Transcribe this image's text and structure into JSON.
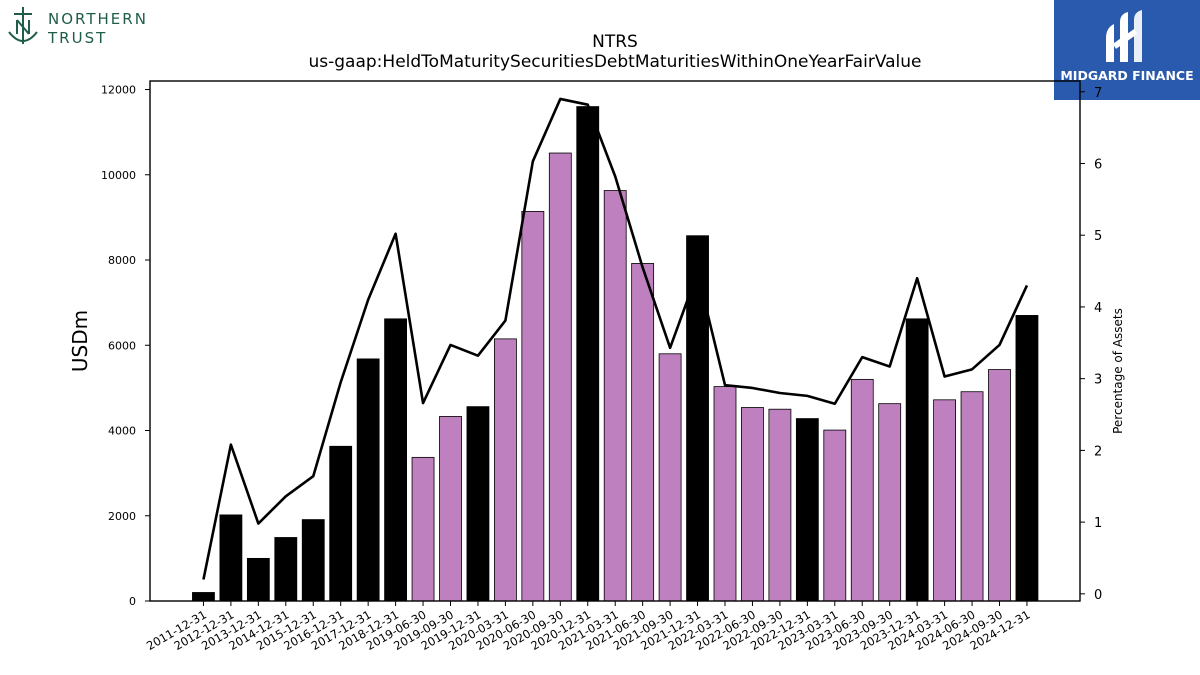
{
  "branding": {
    "left_logo_line1": "NORTHERN",
    "left_logo_line2": "TRUST",
    "right_logo_text": "MIDGARD FINANCE"
  },
  "chart_data": {
    "type": "bar",
    "title": "NTRS",
    "subtitle": "us-gaap:HeldToMaturitySecuritiesDebtMaturitiesWithinOneYearFairValue",
    "ylabel": "USDm",
    "y2label": "Percentage of Assets",
    "ylim": [
      0,
      12200
    ],
    "y2lim": [
      -0.1,
      7.15
    ],
    "yticks": [
      0,
      2000,
      4000,
      6000,
      8000,
      10000,
      12000
    ],
    "y2ticks": [
      0,
      1,
      2,
      3,
      4,
      5,
      6,
      7
    ],
    "categories": [
      "2011-12-31",
      "2012-12-31",
      "2013-12-31",
      "2014-12-31",
      "2015-12-31",
      "2016-12-31",
      "2017-12-31",
      "2018-12-31",
      "2019-06-30",
      "2019-09-30",
      "2019-12-31",
      "2020-03-31",
      "2020-06-30",
      "2020-09-30",
      "2020-12-31",
      "2021-03-31",
      "2021-06-30",
      "2021-09-30",
      "2021-12-31",
      "2022-03-31",
      "2022-06-30",
      "2022-09-30",
      "2022-12-31",
      "2023-03-31",
      "2023-06-30",
      "2023-09-30",
      "2023-12-31",
      "2024-03-31",
      "2024-06-30",
      "2024-09-30",
      "2024-12-31"
    ],
    "series": [
      {
        "type": "bar",
        "values": [
          200,
          2020,
          1000,
          1490,
          1910,
          3630,
          5680,
          6620,
          3370,
          4330,
          4560,
          6150,
          9140,
          10510,
          11600,
          9630,
          7920,
          5800,
          8570,
          5030,
          4540,
          4500,
          4280,
          4010,
          5200,
          4630,
          6620,
          4720,
          4910,
          5430,
          6700
        ]
      },
      {
        "type": "line",
        "axis": "right",
        "values": [
          0.2,
          2.08,
          0.98,
          1.36,
          1.64,
          2.95,
          4.1,
          5.02,
          2.66,
          3.47,
          3.32,
          3.81,
          6.03,
          6.9,
          6.82,
          5.82,
          4.55,
          3.43,
          4.48,
          2.91,
          2.87,
          2.8,
          2.76,
          2.65,
          3.3,
          3.17,
          4.4,
          3.03,
          3.13,
          3.47,
          4.3
        ]
      }
    ],
    "bar_colors": [
      "#000000",
      "#000000",
      "#000000",
      "#000000",
      "#000000",
      "#000000",
      "#000000",
      "#000000",
      "#bf80bf",
      "#bf80bf",
      "#000000",
      "#bf80bf",
      "#bf80bf",
      "#bf80bf",
      "#000000",
      "#bf80bf",
      "#bf80bf",
      "#bf80bf",
      "#000000",
      "#bf80bf",
      "#bf80bf",
      "#bf80bf",
      "#000000",
      "#bf80bf",
      "#bf80bf",
      "#bf80bf",
      "#000000",
      "#bf80bf",
      "#bf80bf",
      "#bf80bf",
      "#000000"
    ],
    "line_color": "#000000",
    "grid": false
  }
}
